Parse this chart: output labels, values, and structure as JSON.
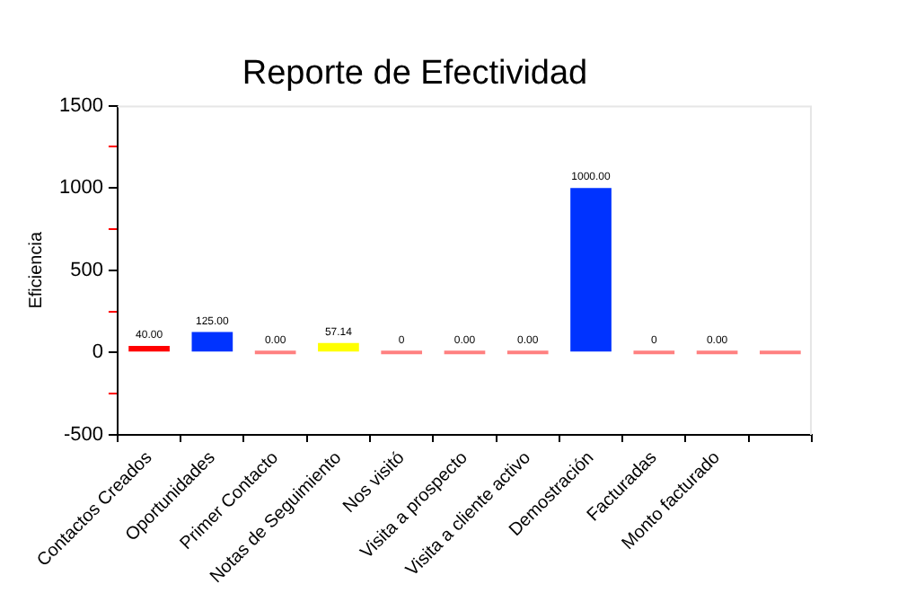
{
  "chart_data": {
    "type": "bar",
    "title": "Reporte de Efectividad",
    "ylabel": "Eficiencia",
    "categories": [
      "Contactos Creados",
      "Oportunidades",
      "Primer Contacto",
      "Notas de Seguimiento",
      "Nos visitó",
      "Visita a prospecto",
      "Visita a cliente activo",
      "Demostración",
      "Facturadas",
      "Monto facturado",
      null
    ],
    "values": [
      40,
      125,
      0,
      57.14,
      0,
      0,
      0,
      1000,
      0,
      0,
      0
    ],
    "colors": [
      "#ff0000",
      "#0033ff",
      "#ff8080",
      "#ffff00",
      "#ff8080",
      "#ff8080",
      "#ff8080",
      "#0033ff",
      "#ff8080",
      "#ff8080",
      "#ff8080"
    ],
    "value_labels": [
      "40.00",
      "125.00",
      "0.00",
      "57.14",
      "0",
      "0.00",
      "0.00",
      "1000.00",
      "0",
      "0.00",
      null
    ],
    "ylim": [
      -500,
      1500
    ],
    "yticks": [
      -500,
      {
        "value": -250,
        "label": null
      },
      0,
      {
        "value": 250,
        "label": null
      },
      500,
      {
        "value": 750,
        "label": null
      },
      1000,
      {
        "value": 1250,
        "label": null
      },
      1500
    ],
    "grid": false,
    "legend": false
  }
}
